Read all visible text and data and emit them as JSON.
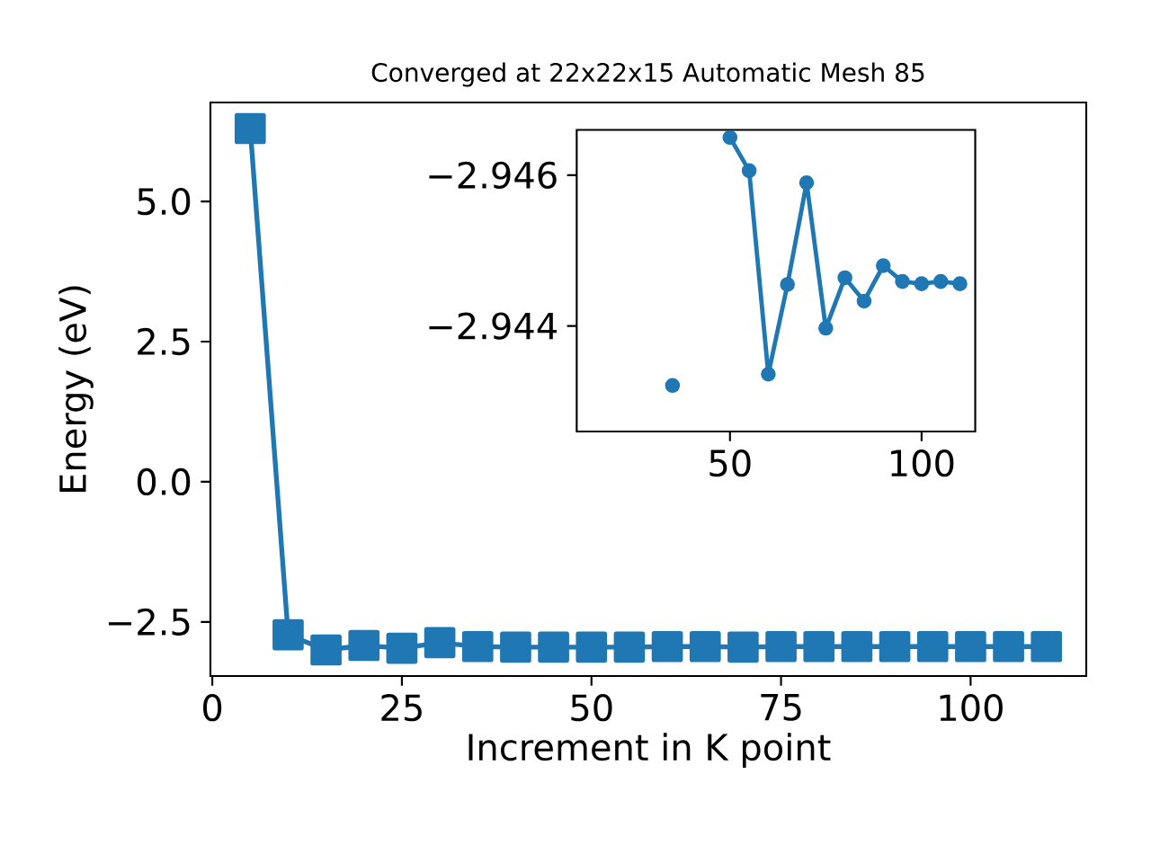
{
  "chart_data": [
    {
      "type": "line",
      "title": "Converged at 22x22x15 Automatic Mesh 85",
      "xlabel": "Increment in K point",
      "ylabel": "Energy (eV)",
      "x": [
        5,
        10,
        15,
        20,
        25,
        30,
        35,
        40,
        45,
        50,
        55,
        60,
        65,
        70,
        75,
        80,
        85,
        90,
        95,
        100,
        105,
        110
      ],
      "series": [
        {
          "color": "#1f77b4",
          "values": [
            6.3,
            -2.73,
            -3.0,
            -2.92,
            -2.97,
            -2.87,
            -2.94,
            -2.95,
            -2.95,
            -2.95,
            -2.95,
            -2.94,
            -2.94,
            -2.95,
            -2.94,
            -2.94,
            -2.94,
            -2.94,
            -2.94,
            -2.94,
            -2.94,
            -2.94
          ]
        }
      ],
      "xlim": [
        -0.25,
        115.25
      ],
      "ylim": [
        -3.465,
        6.765
      ],
      "xticks": [
        0,
        25,
        50,
        75,
        100
      ],
      "yticks": [
        {
          "value": -2.5,
          "label": "−2.5"
        },
        {
          "value": 0,
          "label": "0.0"
        },
        {
          "value": 2.5,
          "label": "2.5"
        },
        {
          "value": 5,
          "label": "5.0"
        }
      ],
      "marker": "square",
      "grid": false
    },
    {
      "type": "line",
      "x": [
        35,
        40,
        45,
        50,
        55,
        60,
        65,
        70,
        75,
        80,
        85,
        90,
        95,
        100,
        105,
        110
      ],
      "series": [
        {
          "color": "#1f77b4",
          "values": [
            -2.94321,
            null,
            null,
            -2.9465,
            -2.94606,
            -2.94336,
            -2.94455,
            -2.9459,
            -2.94397,
            -2.94464,
            -2.94433,
            -2.9448,
            -2.94459,
            -2.94456,
            -2.94459,
            -2.94456
          ]
        }
      ],
      "xlim": [
        10,
        114
      ],
      "ylim": [
        -2.9426,
        -2.9466
      ],
      "xticks": [
        50,
        100
      ],
      "yticks": [
        {
          "value": -2.946,
          "label": "−2.946"
        },
        {
          "value": -2.944,
          "label": "−2.944"
        }
      ],
      "marker": "circle",
      "grid": false
    }
  ]
}
